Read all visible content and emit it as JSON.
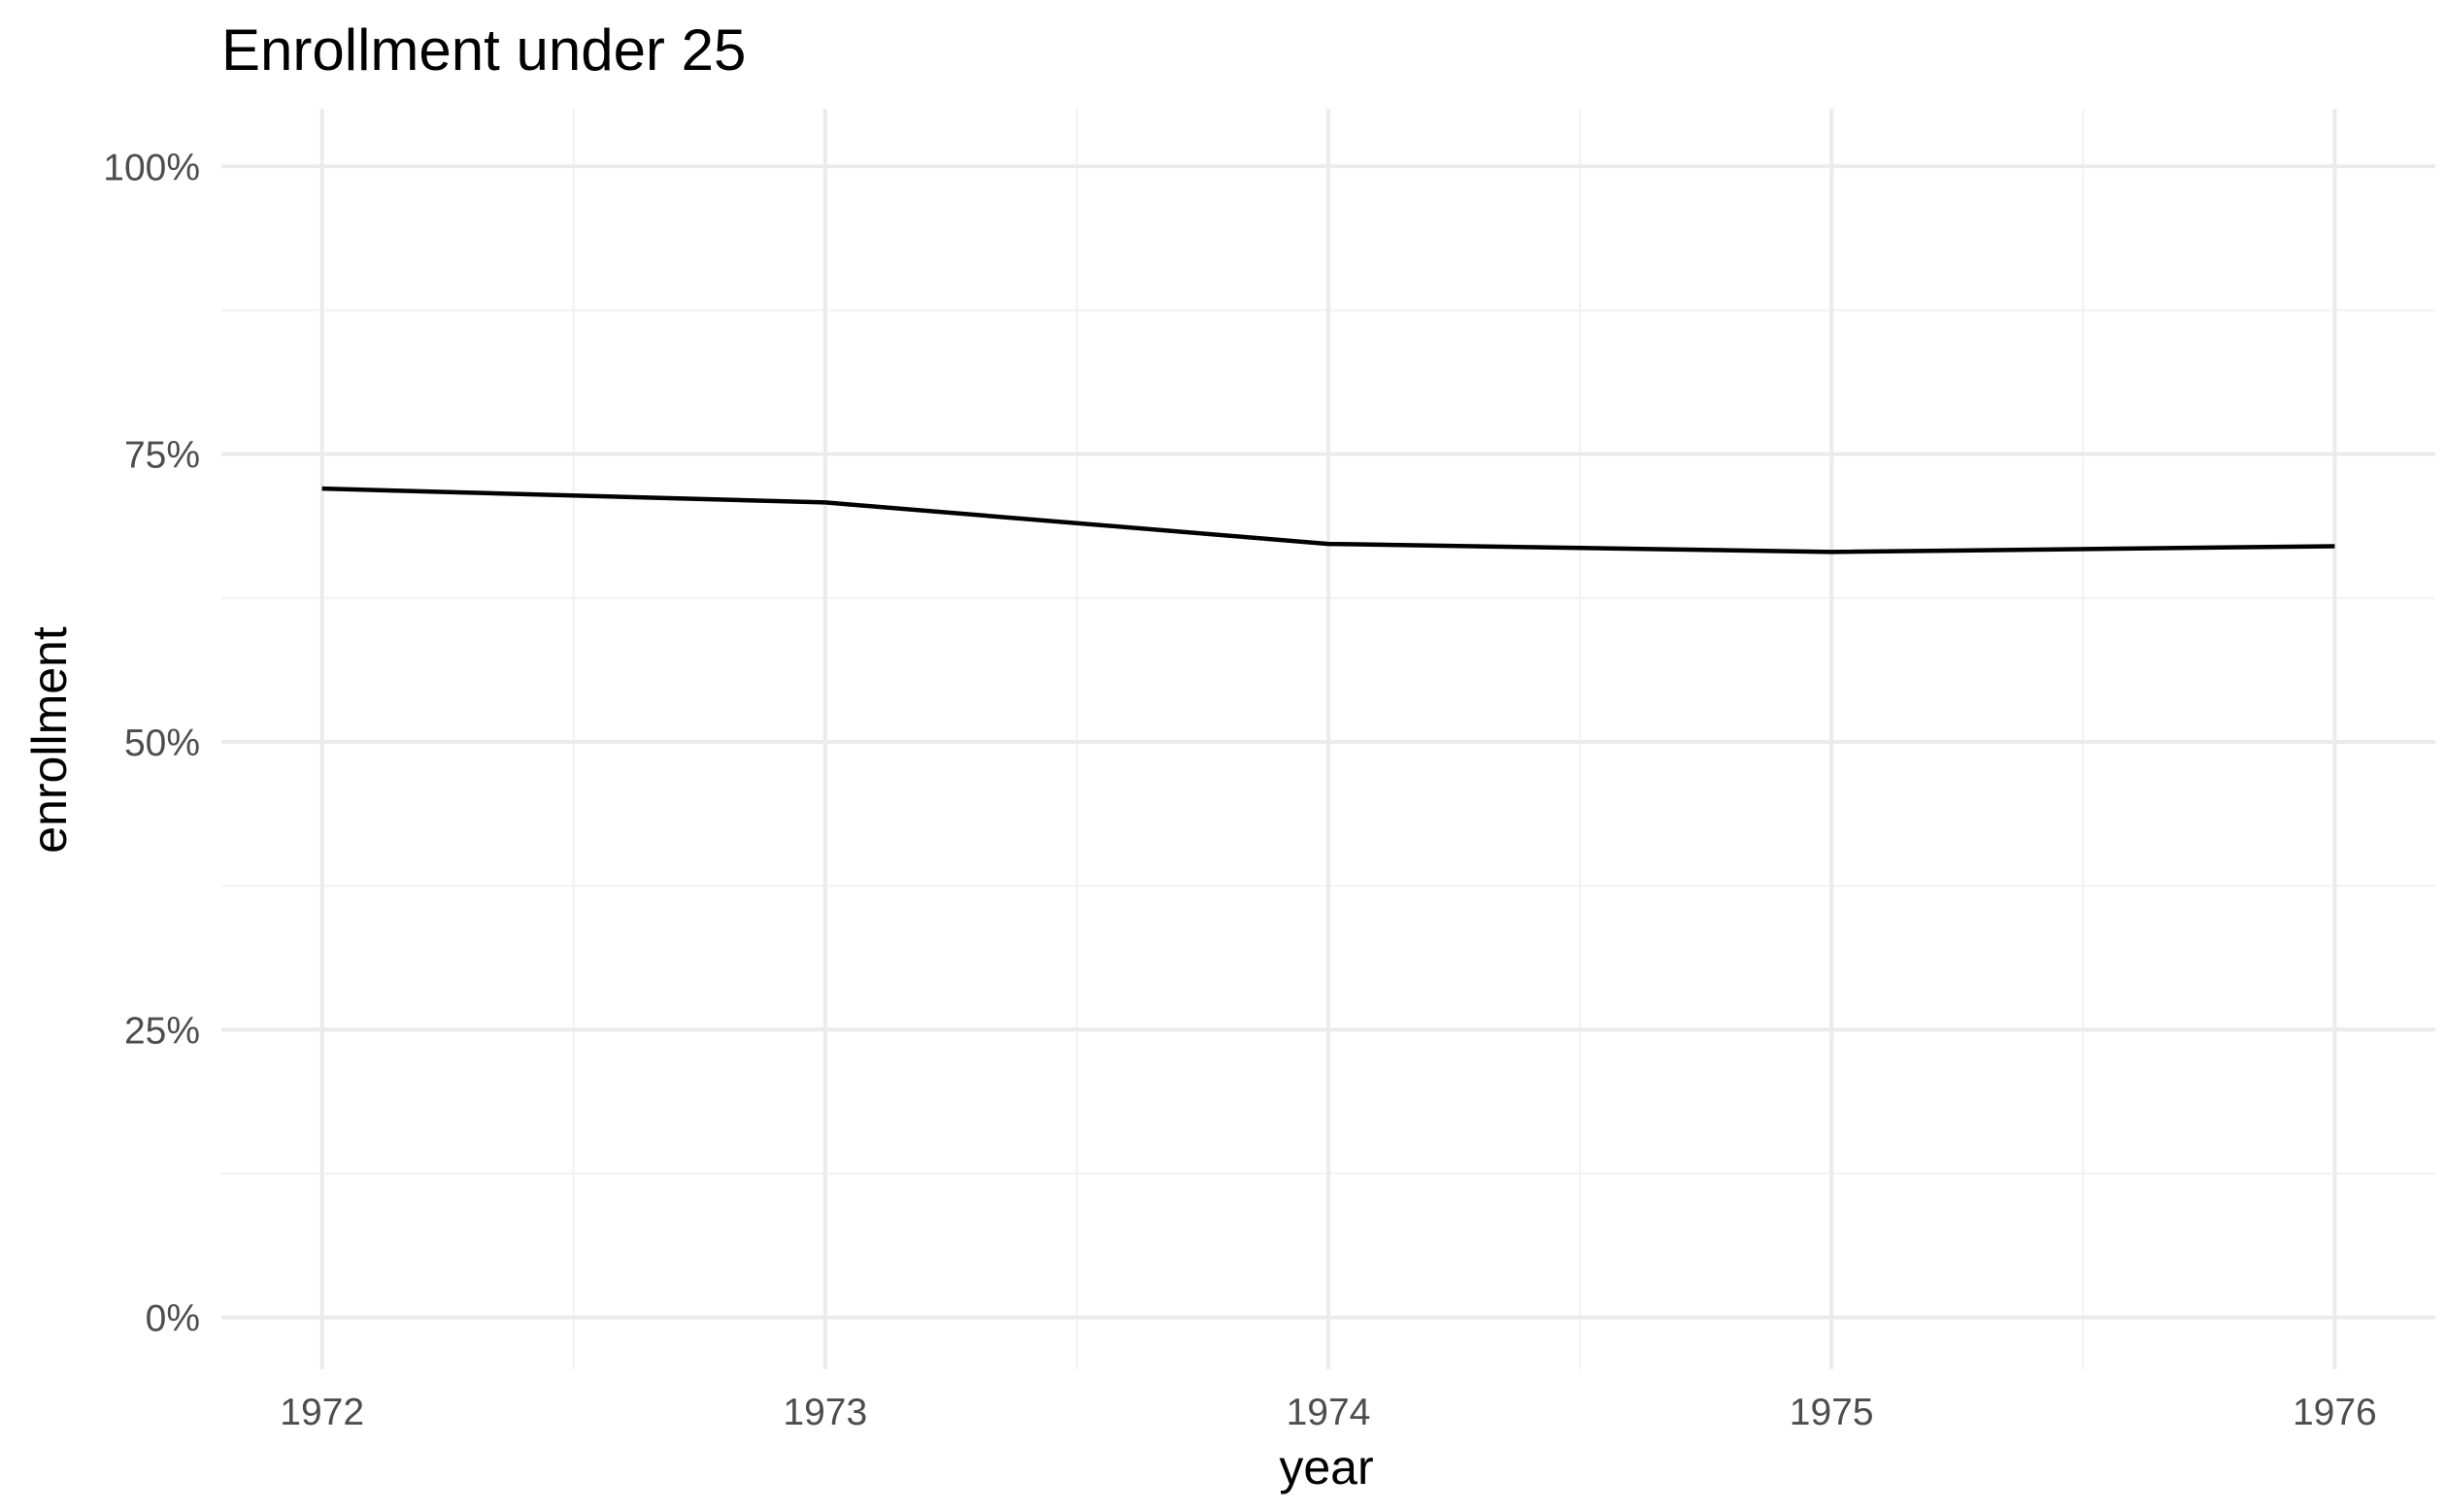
{
  "chart_data": {
    "type": "line",
    "title": "Enrollment under 25",
    "xlabel": "year",
    "ylabel": "enrollment",
    "x": [
      1972,
      1973,
      1974,
      1975,
      1976
    ],
    "series": [
      {
        "values": [
          0.72,
          0.708,
          0.672,
          0.665,
          0.67
        ],
        "color": "#000000"
      }
    ],
    "xlim": [
      1971.8,
      1976.2
    ],
    "ylim": [
      -0.045,
      1.05
    ],
    "x_ticks": [
      1972,
      1973,
      1974,
      1975,
      1976
    ],
    "x_tick_labels": [
      "1972",
      "1973",
      "1974",
      "1975",
      "1976"
    ],
    "x_minor_ticks": [
      1972.5,
      1973.5,
      1974.5,
      1975.5
    ],
    "y_ticks": [
      0,
      0.25,
      0.5,
      0.75,
      1.0
    ],
    "y_tick_labels": [
      "0%",
      "25%",
      "50%",
      "75%",
      "100%"
    ],
    "y_minor_ticks": [
      0.125,
      0.375,
      0.625,
      0.875
    ],
    "grid": true,
    "legend": "none",
    "colors": {
      "grid_major": "#ebebeb",
      "grid_minor": "#f2f2f2",
      "tick_label": "#4d4d4d",
      "axis_title": "#000000",
      "line": "#000000"
    }
  }
}
